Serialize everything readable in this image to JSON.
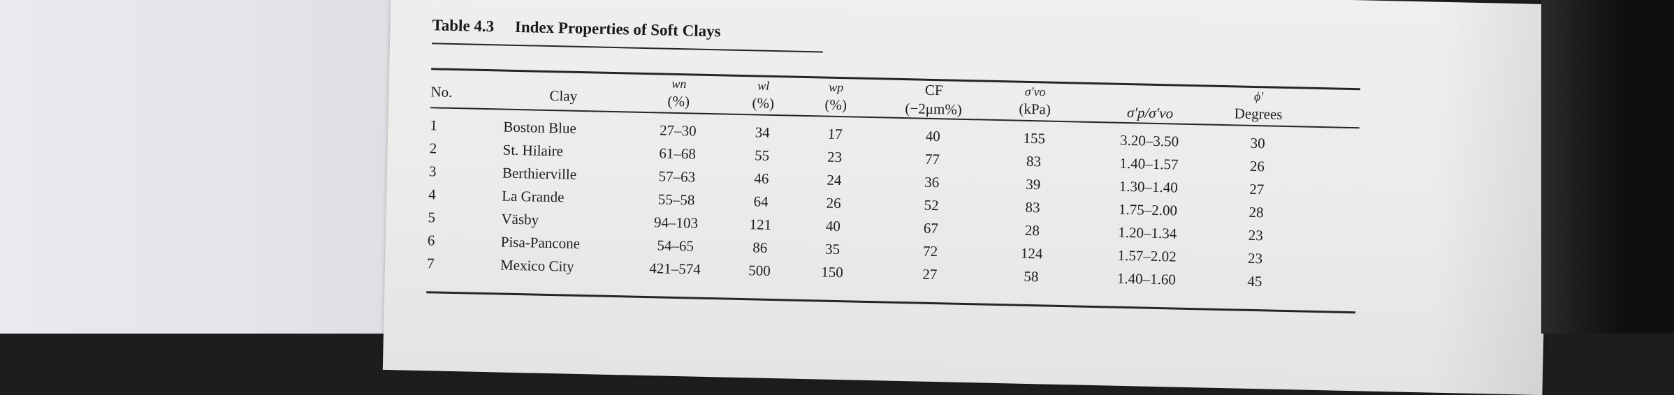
{
  "caption": {
    "label": "Table 4.3",
    "title": "Index Properties of Soft Clays"
  },
  "headers": {
    "no": "No.",
    "clay": "Clay",
    "wn": {
      "symbol": "wn",
      "unit": "(%)"
    },
    "wl": {
      "symbol": "wl",
      "unit": "(%)"
    },
    "wp": {
      "symbol": "wp",
      "unit": "(%)"
    },
    "cf": {
      "line1": "CF",
      "line2": "(−2μm%)"
    },
    "svo": {
      "symbol": "σ′vo",
      "unit": "(kPa)"
    },
    "ratio": "σ′p/σ′vo",
    "phi": {
      "symbol": "ϕ′",
      "unit": "Degrees"
    }
  },
  "rows": [
    {
      "no": "1",
      "clay": "Boston Blue",
      "wn": "27–30",
      "wl": "34",
      "wp": "17",
      "cf": "40",
      "svo": "155",
      "ratio": "3.20–3.50",
      "phi": "30"
    },
    {
      "no": "2",
      "clay": "St. Hilaire",
      "wn": "61–68",
      "wl": "55",
      "wp": "23",
      "cf": "77",
      "svo": "83",
      "ratio": "1.40–1.57",
      "phi": "26"
    },
    {
      "no": "3",
      "clay": "Berthierville",
      "wn": "57–63",
      "wl": "46",
      "wp": "24",
      "cf": "36",
      "svo": "39",
      "ratio": "1.30–1.40",
      "phi": "27"
    },
    {
      "no": "4",
      "clay": "La Grande",
      "wn": "55–58",
      "wl": "64",
      "wp": "26",
      "cf": "52",
      "svo": "83",
      "ratio": "1.75–2.00",
      "phi": "28"
    },
    {
      "no": "5",
      "clay": "Väsby",
      "wn": "94–103",
      "wl": "121",
      "wp": "40",
      "cf": "67",
      "svo": "28",
      "ratio": "1.20–1.34",
      "phi": "23"
    },
    {
      "no": "6",
      "clay": "Pisa-Pancone",
      "wn": "54–65",
      "wl": "86",
      "wp": "35",
      "cf": "72",
      "svo": "124",
      "ratio": "1.57–2.02",
      "phi": "23"
    },
    {
      "no": "7",
      "clay": "Mexico City",
      "wn": "421–574",
      "wl": "500",
      "wp": "150",
      "cf": "27",
      "svo": "58",
      "ratio": "1.40–1.60",
      "phi": "45"
    }
  ]
}
